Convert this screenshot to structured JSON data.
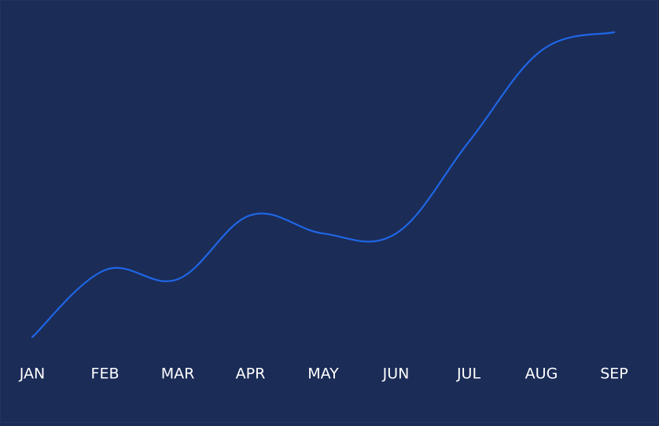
{
  "chart_data": {
    "type": "line",
    "categories": [
      "JAN",
      "FEB",
      "MAR",
      "APR",
      "MAY",
      "JUN",
      "JUL",
      "AUG",
      "SEP"
    ],
    "series": [
      {
        "values": [
          0,
          22,
          19,
          40,
          34,
          34,
          64,
          94,
          100
        ]
      }
    ],
    "ylim": [
      0,
      100
    ],
    "grid": false,
    "legend": "none",
    "colors": {
      "background": "#1b2c57",
      "line": "#1f66e5",
      "text": "#ffffff"
    }
  }
}
